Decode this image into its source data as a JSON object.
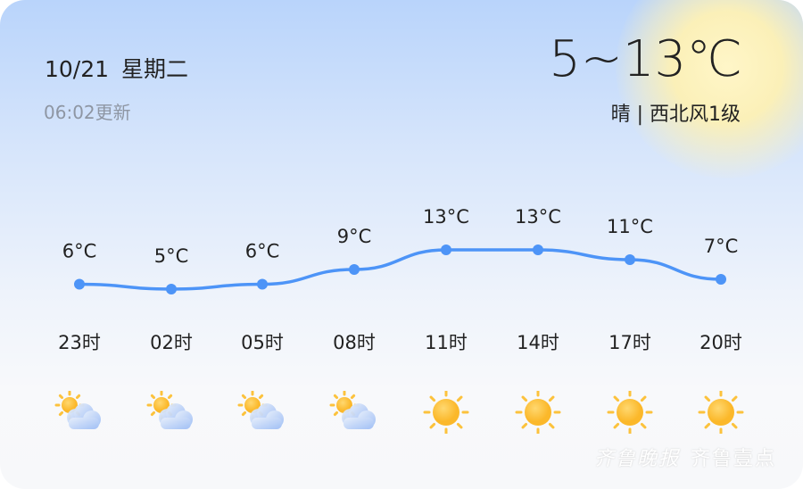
{
  "header": {
    "date": "10/21",
    "weekday": "星期二",
    "updated": "06:02更新",
    "temp_range": "5~13℃",
    "condition": "晴",
    "separator": "|",
    "wind": "西北风1级"
  },
  "hourly": [
    {
      "time": "23时",
      "temp": 6,
      "label": "6°C",
      "icon": "partly-cloudy-icon"
    },
    {
      "time": "02时",
      "temp": 5,
      "label": "5°C",
      "icon": "partly-cloudy-icon"
    },
    {
      "time": "05时",
      "temp": 6,
      "label": "6°C",
      "icon": "partly-cloudy-icon"
    },
    {
      "time": "08时",
      "temp": 9,
      "label": "9°C",
      "icon": "partly-cloudy-icon"
    },
    {
      "time": "11时",
      "temp": 13,
      "label": "13°C",
      "icon": "sunny-icon"
    },
    {
      "time": "14时",
      "temp": 13,
      "label": "13°C",
      "icon": "sunny-icon"
    },
    {
      "time": "17时",
      "temp": 11,
      "label": "11°C",
      "icon": "sunny-icon"
    },
    {
      "time": "20时",
      "temp": 7,
      "label": "7°C",
      "icon": "sunny-icon"
    }
  ],
  "colors": {
    "line": "#4d94f7",
    "sun": "#fdc23a",
    "cloud": "#b4cdf8"
  },
  "watermark": {
    "left": "齐鲁晚报",
    "right": "齐鲁壹点"
  }
}
